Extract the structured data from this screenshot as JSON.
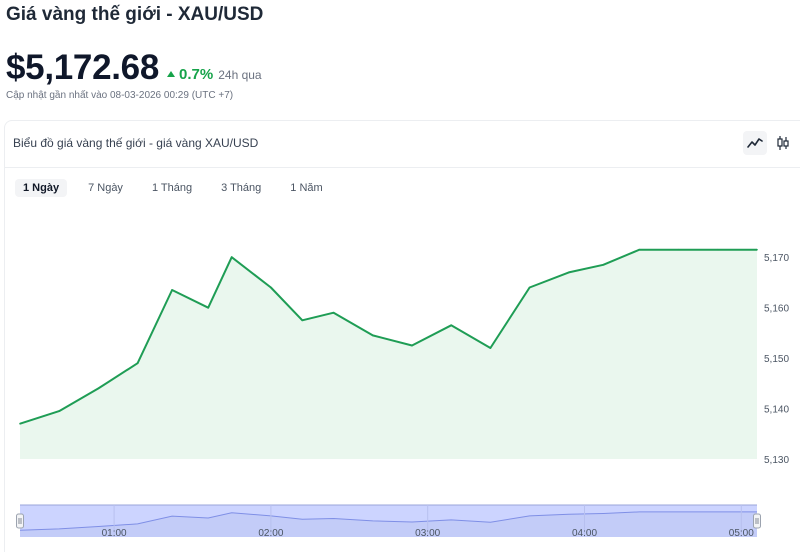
{
  "page": {
    "title": "Giá vàng thế giới - XAU/USD",
    "price": "$5,172.68",
    "change": "0.7%",
    "change_period": "24h qua",
    "updated": "Cập nhật gần nhất vào 08-03-2026 00:29 (UTC +7)"
  },
  "chart_card": {
    "title": "Biểu đồ giá vàng thế giới - giá vàng XAU/USD",
    "view_buttons": [
      {
        "name": "line-chart-icon",
        "active": true
      },
      {
        "name": "candlestick-icon",
        "active": false
      }
    ]
  },
  "tabs": [
    {
      "label": "1 Ngày",
      "active": true
    },
    {
      "label": "7 Ngày",
      "active": false
    },
    {
      "label": "1 Tháng",
      "active": false
    },
    {
      "label": "3 Tháng",
      "active": false
    },
    {
      "label": "1 Năm",
      "active": false
    }
  ],
  "colors": {
    "accent_green": "#16a34a",
    "line": "#1f9d55",
    "area_fill": "#eaf7ee",
    "navigator_fill": "#ccd4ff",
    "navigator_line": "#7f8fe6"
  },
  "chart_data": {
    "type": "area",
    "ylim": [
      5130,
      5175
    ],
    "y_ticks": [
      "5,170",
      "5,160",
      "5,150",
      "5,140",
      "5,130"
    ],
    "y_tick_values": [
      5170,
      5160,
      5150,
      5140,
      5130
    ],
    "x_labels": [
      "01:00",
      "02:00",
      "03:00",
      "04:00",
      "05:00"
    ],
    "x_label_times": [
      1.0,
      2.0,
      3.0,
      4.0,
      5.0
    ],
    "x": [
      0.4,
      0.65,
      0.9,
      1.15,
      1.37,
      1.6,
      1.75,
      2.0,
      2.2,
      2.4,
      2.65,
      2.9,
      3.15,
      3.4,
      3.65,
      3.9,
      4.12,
      4.35,
      4.6,
      4.85,
      5.1
    ],
    "y": [
      5137,
      5139.5,
      5144,
      5149,
      5163.5,
      5160,
      5170,
      5164,
      5157.5,
      5159,
      5154.5,
      5152.5,
      5156.5,
      5152,
      5164,
      5167,
      5168.5,
      5171.5,
      5171.5,
      5171.5,
      5171.5
    ]
  }
}
